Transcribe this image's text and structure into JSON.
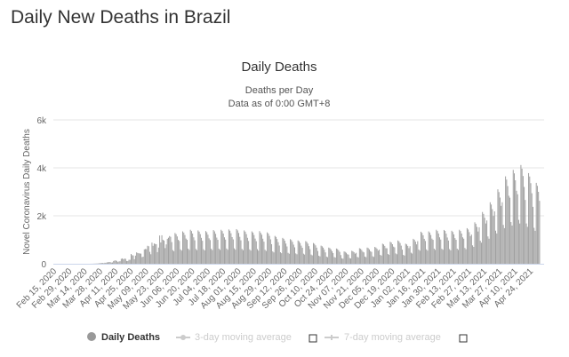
{
  "page": {
    "title": "Daily New Deaths in Brazil"
  },
  "chart_data": {
    "type": "bar",
    "title": "Daily Deaths",
    "subtitle": [
      "Deaths per Day",
      "Data as of 0:00 GMT+8"
    ],
    "ylabel": "Novel Coronavirus Daily Deaths",
    "xlabel": "",
    "ylim": [
      0,
      6000
    ],
    "yticks": [
      {
        "v": 0,
        "label": "0"
      },
      {
        "v": 2000,
        "label": "2k"
      },
      {
        "v": 4000,
        "label": "4k"
      },
      {
        "v": 6000,
        "label": "6k"
      }
    ],
    "grid": true,
    "x_start": "2020-02-15",
    "x_tick_every_days": 14,
    "x_tick_labels": [
      "Feb 15, 2020",
      "Feb 29, 2020",
      "Mar 14, 2020",
      "Mar 28, 2020",
      "Apr 11, 2020",
      "Apr 25, 2020",
      "May 09, 2020",
      "May 23, 2020",
      "Jun 06, 2020",
      "Jun 20, 2020",
      "Jul 04, 2020",
      "Jul 18, 2020",
      "Aug 01, 2020",
      "Aug 15, 2020",
      "Aug 29, 2020",
      "Sep 12, 2020",
      "Sep 26, 2020",
      "Oct 10, 2020",
      "Oct 24, 2020",
      "Nov 07, 2020",
      "Nov 21, 2020",
      "Dec 05, 2020",
      "Dec 19, 2020",
      "Jan 02, 2021",
      "Jan 16, 2021",
      "Jan 30, 2021",
      "Feb 13, 2021",
      "Feb 27, 2021",
      "Mar 13, 2021",
      "Mar 27, 2021",
      "Apr 10, 2021",
      "Apr 24, 2021"
    ],
    "bar_color": "#a0a0a0",
    "legend": {
      "placement": "bottom",
      "items": [
        {
          "label": "Daily Deaths",
          "active": true,
          "color": "#999999"
        },
        {
          "label": "3-day moving average",
          "active": false,
          "color": "#cccccc"
        },
        {
          "label": "7-day moving average",
          "active": false,
          "color": "#cccccc"
        }
      ]
    },
    "values": [
      0,
      0,
      0,
      0,
      0,
      0,
      0,
      0,
      0,
      0,
      0,
      0,
      0,
      0,
      0,
      0,
      0,
      0,
      0,
      0,
      0,
      0,
      0,
      0,
      0,
      0,
      0,
      0,
      0,
      0,
      0,
      1,
      3,
      3,
      4,
      7,
      9,
      12,
      11,
      20,
      25,
      35,
      34,
      22,
      42,
      40,
      58,
      60,
      73,
      68,
      50,
      54,
      114,
      133,
      141,
      115,
      68,
      99,
      105,
      204,
      225,
      188,
      217,
      206,
      115,
      113,
      166,
      165,
      407,
      357,
      346,
      189,
      338,
      474,
      449,
      435,
      428,
      421,
      275,
      296,
      600,
      615,
      610,
      751,
      730,
      496,
      396,
      881,
      749,
      844,
      824,
      816,
      485,
      674,
      1179,
      888,
      1188,
      1001,
      965,
      653,
      807,
      1039,
      1086,
      1156,
      1124,
      903,
      570,
      523,
      1283,
      1235,
      1140,
      998,
      950,
      600,
      550,
      1350,
      1300,
      1200,
      1050,
      998,
      630,
      578,
      1418,
      1365,
      1260,
      1103,
      979,
      618,
      567,
      1391,
      1339,
      1236,
      1082,
      960,
      606,
      556,
      1364,
      1313,
      1212,
      1061,
      988,
      624,
      572,
      1404,
      1352,
      1248,
      1092,
      998,
      630,
      578,
      1418,
      1365,
      1260,
      1103,
      1007,
      636,
      583,
      1431,
      1378,
      1272,
      1113,
      1017,
      642,
      589,
      1445,
      1391,
      1284,
      1124,
      979,
      618,
      567,
      1391,
      1339,
      1236,
      1082,
      950,
      600,
      550,
      1350,
      1300,
      1200,
      1050,
      941,
      612,
      547,
      1362,
      1290,
      1211,
      1045,
      922,
      582,
      534,
      1310,
      1261,
      1164,
      1019,
      817,
      516,
      473,
      1161,
      1118,
      1032,
      903,
      760,
      480,
      440,
      1080,
      1040,
      960,
      840,
      722,
      456,
      418,
      1026,
      988,
      912,
      798,
      684,
      432,
      396,
      972,
      936,
      864,
      756,
      665,
      420,
      385,
      945,
      910,
      840,
      735,
      608,
      384,
      352,
      864,
      832,
      768,
      672,
      532,
      336,
      308,
      756,
      728,
      672,
      588,
      475,
      300,
      275,
      675,
      650,
      600,
      525,
      447,
      282,
      259,
      635,
      611,
      564,
      494,
      361,
      228,
      209,
      513,
      494,
      456,
      399,
      380,
      240,
      220,
      540,
      520,
      480,
      420,
      456,
      288,
      264,
      648,
      624,
      576,
      504,
      475,
      300,
      275,
      675,
      650,
      600,
      525,
      494,
      312,
      286,
      702,
      676,
      624,
      546,
      589,
      372,
      341,
      837,
      806,
      744,
      651,
      646,
      408,
      374,
      918,
      884,
      816,
      714,
      684,
      432,
      396,
      972,
      936,
      864,
      756,
      589,
      372,
      341,
      837,
      806,
      744,
      651,
      732,
      462,
      424,
      1040,
      1001,
      924,
      809,
      941,
      594,
      545,
      1337,
      1287,
      1188,
      1040,
      950,
      600,
      550,
      1350,
      1300,
      1200,
      1050,
      998,
      630,
      578,
      1418,
      1365,
      1260,
      1103,
      1010,
      625,
      585,
      1410,
      1370,
      1255,
      1095,
      969,
      612,
      561,
      1377,
      1326,
      1224,
      1071,
      998,
      630,
      578,
      1418,
      1365,
      1260,
      1103,
      1045,
      660,
      605,
      1485,
      1430,
      1320,
      1155,
      1216,
      768,
      704,
      1728,
      1664,
      1536,
      1344,
      1520,
      960,
      880,
      2160,
      2080,
      1920,
      1680,
      1805,
      1140,
      1045,
      2565,
      2470,
      2280,
      1995,
      2185,
      1380,
      1265,
      3105,
      2990,
      2760,
      2415,
      2565,
      1620,
      1485,
      3645,
      3510,
      3240,
      2835,
      2755,
      1740,
      1595,
      3915,
      3770,
      3480,
      3045,
      2898,
      1830,
      1678,
      4118,
      3965,
      3660,
      3203,
      2660,
      1680,
      1540,
      3780,
      3640,
      3360,
      2940,
      2375,
      1500,
      1375,
      3375,
      3250,
      3000,
      2625
    ]
  }
}
